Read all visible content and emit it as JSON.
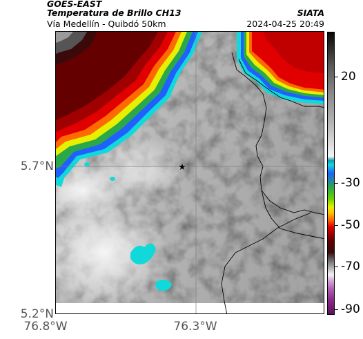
{
  "header": {
    "source": "GOES-EAST",
    "product": "Temperatura de Brillo CH13",
    "organization": "SIATA",
    "region": "Vía Medellín - Quibdó 50km",
    "timestamp": "2024-04-25 20:49"
  },
  "map": {
    "lat_labels": [
      "5.7°N",
      "5.2°N"
    ],
    "lon_labels": [
      "76.8°W",
      "76.3°W"
    ],
    "marker": "star"
  },
  "colorbar": {
    "tick_labels": [
      "20",
      "-30",
      "-50",
      "-70",
      "-90"
    ],
    "values": [
      20,
      -30,
      -50,
      -70,
      -90
    ],
    "colors": {
      "warm": "#dcdcdc",
      "cyan": "#11d9d9",
      "blue": "#2060ff",
      "green": "#2aa84a",
      "yellow": "#e6f000",
      "red": "#e00000",
      "dark_red": "#640000",
      "magenta": "#8a2a8a"
    }
  }
}
